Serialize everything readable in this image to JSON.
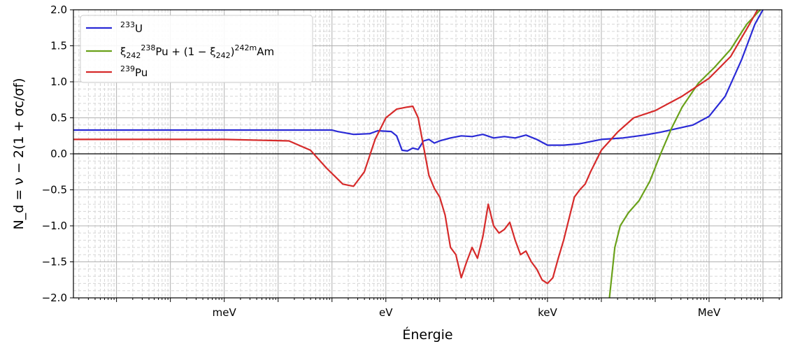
{
  "chart_data": {
    "type": "line",
    "title": "",
    "xlabel": "Énergie",
    "ylabel": "N_d = ν − 2(1 + σc/σf)",
    "ylim": [
      -2.0,
      2.0
    ],
    "xscale": "log",
    "xlim_log10_eV": [
      -5.8,
      7.35
    ],
    "grid": true,
    "legend_position": "top-left",
    "xticks": [
      {
        "label": "meV",
        "log10_eV": -3
      },
      {
        "label": "eV",
        "log10_eV": 0
      },
      {
        "label": "keV",
        "log10_eV": 3
      },
      {
        "label": "MeV",
        "log10_eV": 6
      }
    ],
    "yticks": [
      -2.0,
      -1.5,
      -1.0,
      -0.5,
      0.0,
      0.5,
      1.0,
      1.5,
      2.0
    ],
    "ytick_labels": [
      "−2.0",
      "−1.5",
      "−1.0",
      "−0.5",
      "0.0",
      "0.5",
      "1.0",
      "1.5",
      "2.0"
    ],
    "series": [
      {
        "name_sup": "233",
        "name": "U",
        "color": "#2a2ad6",
        "x_log10_eV": [
          -5.8,
          -2.5,
          -1.0,
          -0.9,
          -0.6,
          -0.3,
          -0.15,
          0.1,
          0.2,
          0.25,
          0.3,
          0.4,
          0.5,
          0.6,
          0.7,
          0.8,
          0.9,
          1.0,
          1.2,
          1.4,
          1.6,
          1.8,
          2.0,
          2.2,
          2.4,
          2.6,
          2.8,
          3.0,
          3.3,
          3.6,
          4.0,
          4.4,
          4.8,
          5.1,
          5.4,
          5.7,
          6.0,
          6.3,
          6.6,
          6.85,
          7.0
        ],
        "y": [
          0.33,
          0.33,
          0.33,
          0.31,
          0.27,
          0.28,
          0.32,
          0.31,
          0.25,
          0.15,
          0.05,
          0.04,
          0.08,
          0.06,
          0.18,
          0.2,
          0.15,
          0.18,
          0.22,
          0.25,
          0.24,
          0.27,
          0.22,
          0.24,
          0.22,
          0.26,
          0.2,
          0.12,
          0.12,
          0.14,
          0.2,
          0.22,
          0.26,
          0.3,
          0.35,
          0.4,
          0.52,
          0.8,
          1.3,
          1.8,
          2.0
        ]
      },
      {
        "name": "ξ242 238Pu + (1 − ξ242) 242mAm",
        "color": "#6aa11a",
        "x_log10_eV": [
          4.15,
          4.25,
          4.35,
          4.5,
          4.7,
          4.9,
          5.1,
          5.3,
          5.5,
          5.8,
          6.1,
          6.4,
          6.7,
          6.95
        ],
        "y": [
          -2.0,
          -1.3,
          -1.0,
          -0.82,
          -0.65,
          -0.38,
          0.0,
          0.35,
          0.65,
          0.98,
          1.2,
          1.45,
          1.8,
          2.0
        ]
      },
      {
        "name_sup": "239",
        "name": "Pu",
        "color": "#d62a2a",
        "x_log10_eV": [
          -5.8,
          -3.0,
          -1.8,
          -1.4,
          -1.1,
          -0.8,
          -0.6,
          -0.4,
          -0.2,
          0.0,
          0.2,
          0.4,
          0.5,
          0.6,
          0.7,
          0.8,
          0.9,
          1.0,
          1.1,
          1.2,
          1.3,
          1.4,
          1.5,
          1.6,
          1.7,
          1.8,
          1.9,
          2.0,
          2.1,
          2.2,
          2.3,
          2.4,
          2.5,
          2.6,
          2.7,
          2.8,
          2.9,
          3.0,
          3.1,
          3.2,
          3.3,
          3.4,
          3.5,
          3.6,
          3.7,
          3.8,
          4.0,
          4.3,
          4.6,
          5.0,
          5.5,
          6.0,
          6.4,
          6.75,
          6.9
        ],
        "y": [
          0.2,
          0.2,
          0.18,
          0.05,
          -0.2,
          -0.42,
          -0.45,
          -0.25,
          0.2,
          0.5,
          0.62,
          0.65,
          0.66,
          0.5,
          0.1,
          -0.3,
          -0.48,
          -0.6,
          -0.85,
          -1.3,
          -1.4,
          -1.72,
          -1.5,
          -1.3,
          -1.45,
          -1.15,
          -0.7,
          -1.0,
          -1.1,
          -1.05,
          -0.95,
          -1.2,
          -1.4,
          -1.35,
          -1.5,
          -1.6,
          -1.75,
          -1.8,
          -1.72,
          -1.45,
          -1.2,
          -0.9,
          -0.6,
          -0.5,
          -0.42,
          -0.25,
          0.05,
          0.3,
          0.5,
          0.6,
          0.8,
          1.05,
          1.35,
          1.8,
          2.0
        ]
      }
    ]
  }
}
